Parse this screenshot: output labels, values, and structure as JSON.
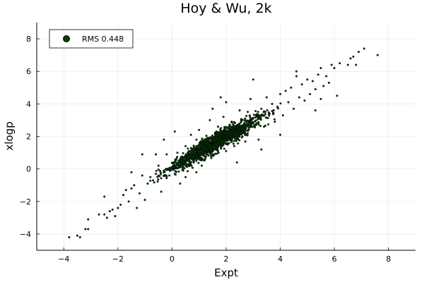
{
  "chart_data": {
    "type": "scatter",
    "title": "Hoy & Wu, 2k",
    "xlabel": "Expt",
    "ylabel": "xlogp",
    "xlim": [
      -5,
      9
    ],
    "ylim": [
      -5,
      9
    ],
    "xticks": [
      -4,
      -2,
      0,
      2,
      4,
      6,
      8
    ],
    "yticks": [
      -4,
      -2,
      0,
      2,
      4,
      6,
      8
    ],
    "grid": true,
    "legend_position": "top-left",
    "series": [
      {
        "name": "RMS 0.448",
        "marker_color": "#0b3d0b",
        "marker_edge": "#000000",
        "points": [
          [
            -3.8,
            -4.2
          ],
          [
            -3.5,
            -4.1
          ],
          [
            -3.4,
            -4.2
          ],
          [
            -3.2,
            -3.7
          ],
          [
            -3.1,
            -3.7
          ],
          [
            -3.1,
            -3.1
          ],
          [
            -2.7,
            -2.8
          ],
          [
            -2.5,
            -2.8
          ],
          [
            -2.4,
            -3.0
          ],
          [
            -2.3,
            -2.6
          ],
          [
            -2.2,
            -2.5
          ],
          [
            -2.1,
            -2.9
          ],
          [
            -2.0,
            -2.4
          ],
          [
            -1.9,
            -2.2
          ],
          [
            -1.8,
            -1.6
          ],
          [
            -1.7,
            -1.3
          ],
          [
            -1.6,
            -2.0
          ],
          [
            -1.5,
            -1.2
          ],
          [
            -1.4,
            -1.0
          ],
          [
            -1.3,
            -2.4
          ],
          [
            -1.2,
            -1.5
          ],
          [
            -1.1,
            -0.4
          ],
          [
            -1.0,
            -1.9
          ],
          [
            -0.9,
            -0.9
          ],
          [
            -0.8,
            -0.5
          ],
          [
            -0.7,
            -0.7
          ],
          [
            -0.6,
            -0.3
          ],
          [
            -0.5,
            0.2
          ],
          [
            -0.4,
            -1.4
          ],
          [
            -0.3,
            -0.1
          ],
          [
            -0.2,
            0.9
          ],
          [
            -0.1,
            -0.4
          ],
          [
            0.0,
            0.1
          ],
          [
            0.1,
            -0.3
          ],
          [
            0.2,
            1.0
          ],
          [
            0.3,
            -0.9
          ],
          [
            0.4,
            0.6
          ],
          [
            0.5,
            1.4
          ],
          [
            0.6,
            0.5
          ],
          [
            0.7,
            2.1
          ],
          [
            0.8,
            0.4
          ],
          [
            0.9,
            1.8
          ],
          [
            1.0,
            2.4
          ],
          [
            1.1,
            0.2
          ],
          [
            1.2,
            1.2
          ],
          [
            1.3,
            1.9
          ],
          [
            1.4,
            3.0
          ],
          [
            1.5,
            0.8
          ],
          [
            1.6,
            1.6
          ],
          [
            1.7,
            2.6
          ],
          [
            1.8,
            1.5
          ],
          [
            1.9,
            3.2
          ],
          [
            2.0,
            1.1
          ],
          [
            2.1,
            2.3
          ],
          [
            2.2,
            2.9
          ],
          [
            2.3,
            1.4
          ],
          [
            2.4,
            2.5
          ],
          [
            2.5,
            3.6
          ],
          [
            2.6,
            2.0
          ],
          [
            2.7,
            3.1
          ],
          [
            2.8,
            2.2
          ],
          [
            2.9,
            4.3
          ],
          [
            3.0,
            2.8
          ],
          [
            3.1,
            3.3
          ],
          [
            3.2,
            1.8
          ],
          [
            3.3,
            3.7
          ],
          [
            3.4,
            2.6
          ],
          [
            3.5,
            4.4
          ],
          [
            3.6,
            3.4
          ],
          [
            3.7,
            4.0
          ],
          [
            3.8,
            2.9
          ],
          [
            3.9,
            3.8
          ],
          [
            4.0,
            4.6
          ],
          [
            4.1,
            3.3
          ],
          [
            4.2,
            4.8
          ],
          [
            4.3,
            4.1
          ],
          [
            4.4,
            5.0
          ],
          [
            4.5,
            3.7
          ],
          [
            4.6,
            6.0
          ],
          [
            4.7,
            4.4
          ],
          [
            4.8,
            5.2
          ],
          [
            4.9,
            4.2
          ],
          [
            5.0,
            5.5
          ],
          [
            5.1,
            4.6
          ],
          [
            5.2,
            5.4
          ],
          [
            5.3,
            4.9
          ],
          [
            5.4,
            5.8
          ],
          [
            5.5,
            6.2
          ],
          [
            5.6,
            5.1
          ],
          [
            5.7,
            5.7
          ],
          [
            5.8,
            5.3
          ],
          [
            5.9,
            6.4
          ],
          [
            6.0,
            6.2
          ],
          [
            6.1,
            4.5
          ],
          [
            6.5,
            6.4
          ],
          [
            6.6,
            6.8
          ],
          [
            6.8,
            6.4
          ],
          [
            6.9,
            7.2
          ],
          [
            7.1,
            7.4
          ],
          [
            7.6,
            7.0
          ],
          [
            6.7,
            6.9
          ],
          [
            6.2,
            6.5
          ],
          [
            -1.5,
            -0.2
          ],
          [
            -1.1,
            0.9
          ],
          [
            -0.3,
            1.8
          ],
          [
            0.1,
            2.3
          ],
          [
            0.5,
            -0.5
          ],
          [
            0.9,
            -0.2
          ],
          [
            1.5,
            3.7
          ],
          [
            2.0,
            4.1
          ],
          [
            2.4,
            0.4
          ],
          [
            3.0,
            5.5
          ],
          [
            3.3,
            1.2
          ],
          [
            4.0,
            2.1
          ],
          [
            4.6,
            5.7
          ],
          [
            5.3,
            3.6
          ],
          [
            5.5,
            4.3
          ],
          [
            -2.5,
            -1.7
          ],
          [
            -0.6,
            0.9
          ],
          [
            1.8,
            4.4
          ]
        ]
      }
    ]
  }
}
